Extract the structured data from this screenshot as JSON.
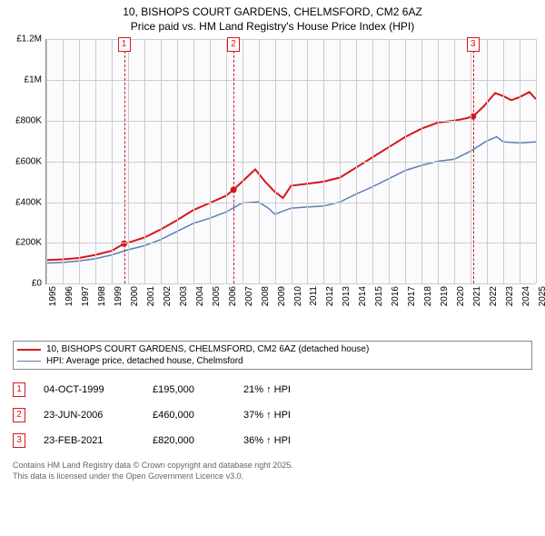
{
  "title": {
    "line1": "10, BISHOPS COURT GARDENS, CHELMSFORD, CM2 6AZ",
    "line2": "Price paid vs. HM Land Registry's House Price Index (HPI)"
  },
  "chart": {
    "type": "line",
    "background_color": "#fbfbfd",
    "grid_color": "#cccccc",
    "axis_color": "#888888",
    "x": {
      "min": 1995,
      "max": 2025,
      "ticks": [
        1995,
        1996,
        1997,
        1998,
        1999,
        2000,
        2001,
        2002,
        2003,
        2004,
        2005,
        2006,
        2007,
        2008,
        2009,
        2010,
        2011,
        2012,
        2013,
        2014,
        2015,
        2016,
        2017,
        2018,
        2019,
        2020,
        2021,
        2022,
        2023,
        2024,
        2025
      ]
    },
    "y": {
      "min": 0,
      "max": 1200000,
      "ticks": [
        {
          "v": 0,
          "label": "£0"
        },
        {
          "v": 200000,
          "label": "£200K"
        },
        {
          "v": 400000,
          "label": "£400K"
        },
        {
          "v": 600000,
          "label": "£600K"
        },
        {
          "v": 800000,
          "label": "£800K"
        },
        {
          "v": 1000000,
          "label": "£1M"
        },
        {
          "v": 1200000,
          "label": "£1.2M"
        }
      ]
    },
    "series": [
      {
        "name": "property",
        "label": "10, BISHOPS COURT GARDENS, CHELMSFORD, CM2 6AZ (detached house)",
        "color": "#d8161b",
        "width": 2,
        "points": [
          [
            1995,
            115000
          ],
          [
            1996,
            118000
          ],
          [
            1997,
            125000
          ],
          [
            1998,
            140000
          ],
          [
            1999,
            160000
          ],
          [
            1999.76,
            195000
          ],
          [
            2000,
            200000
          ],
          [
            2001,
            225000
          ],
          [
            2002,
            265000
          ],
          [
            2003,
            310000
          ],
          [
            2004,
            360000
          ],
          [
            2005,
            395000
          ],
          [
            2006,
            430000
          ],
          [
            2006.47,
            460000
          ],
          [
            2007,
            500000
          ],
          [
            2007.8,
            560000
          ],
          [
            2008.4,
            500000
          ],
          [
            2009,
            450000
          ],
          [
            2009.5,
            420000
          ],
          [
            2010,
            480000
          ],
          [
            2011,
            490000
          ],
          [
            2012,
            500000
          ],
          [
            2013,
            520000
          ],
          [
            2014,
            570000
          ],
          [
            2015,
            620000
          ],
          [
            2016,
            670000
          ],
          [
            2017,
            720000
          ],
          [
            2018,
            760000
          ],
          [
            2019,
            790000
          ],
          [
            2020,
            800000
          ],
          [
            2020.7,
            810000
          ],
          [
            2021.15,
            820000
          ],
          [
            2021.8,
            870000
          ],
          [
            2022.5,
            935000
          ],
          [
            2023,
            920000
          ],
          [
            2023.5,
            900000
          ],
          [
            2024,
            915000
          ],
          [
            2024.6,
            940000
          ],
          [
            2025,
            905000
          ]
        ]
      },
      {
        "name": "hpi",
        "label": "HPI: Average price, detached house, Chelmsford",
        "color": "#5b7fb5",
        "width": 1.5,
        "points": [
          [
            1995,
            100000
          ],
          [
            1996,
            103000
          ],
          [
            1997,
            110000
          ],
          [
            1998,
            122000
          ],
          [
            1999,
            140000
          ],
          [
            2000,
            165000
          ],
          [
            2001,
            185000
          ],
          [
            2002,
            215000
          ],
          [
            2003,
            255000
          ],
          [
            2004,
            295000
          ],
          [
            2005,
            320000
          ],
          [
            2006,
            350000
          ],
          [
            2007,
            395000
          ],
          [
            2008,
            400000
          ],
          [
            2008.6,
            370000
          ],
          [
            2009,
            340000
          ],
          [
            2010,
            370000
          ],
          [
            2011,
            375000
          ],
          [
            2012,
            380000
          ],
          [
            2013,
            400000
          ],
          [
            2014,
            440000
          ],
          [
            2015,
            475000
          ],
          [
            2016,
            515000
          ],
          [
            2017,
            555000
          ],
          [
            2018,
            580000
          ],
          [
            2019,
            600000
          ],
          [
            2020,
            610000
          ],
          [
            2021,
            650000
          ],
          [
            2022,
            700000
          ],
          [
            2022.6,
            720000
          ],
          [
            2023,
            695000
          ],
          [
            2024,
            690000
          ],
          [
            2025,
            695000
          ]
        ]
      }
    ],
    "sale_markers": [
      {
        "x": 1999.76,
        "y": 195000
      },
      {
        "x": 2006.47,
        "y": 460000
      },
      {
        "x": 2021.15,
        "y": 820000
      }
    ],
    "event_lines": [
      {
        "num": "1",
        "x": 1999.76,
        "color": "#d8161b"
      },
      {
        "num": "2",
        "x": 2006.47,
        "color": "#d8161b"
      },
      {
        "num": "3",
        "x": 2021.15,
        "color": "#d8161b"
      }
    ]
  },
  "legend": {
    "items": [
      {
        "color": "#d8161b",
        "width": 2,
        "label_key": "chart.series.0.label"
      },
      {
        "color": "#5b7fb5",
        "width": 1.5,
        "label_key": "chart.series.1.label"
      }
    ]
  },
  "events": [
    {
      "num": "1",
      "color": "#d8161b",
      "date": "04-OCT-1999",
      "price": "£195,000",
      "delta": "21% ↑ HPI"
    },
    {
      "num": "2",
      "color": "#d8161b",
      "date": "23-JUN-2006",
      "price": "£460,000",
      "delta": "37% ↑ HPI"
    },
    {
      "num": "3",
      "color": "#d8161b",
      "date": "23-FEB-2021",
      "price": "£820,000",
      "delta": "36% ↑ HPI"
    }
  ],
  "footer": {
    "line1": "Contains HM Land Registry data © Crown copyright and database right 2025.",
    "line2": "This data is licensed under the Open Government Licence v3.0."
  }
}
